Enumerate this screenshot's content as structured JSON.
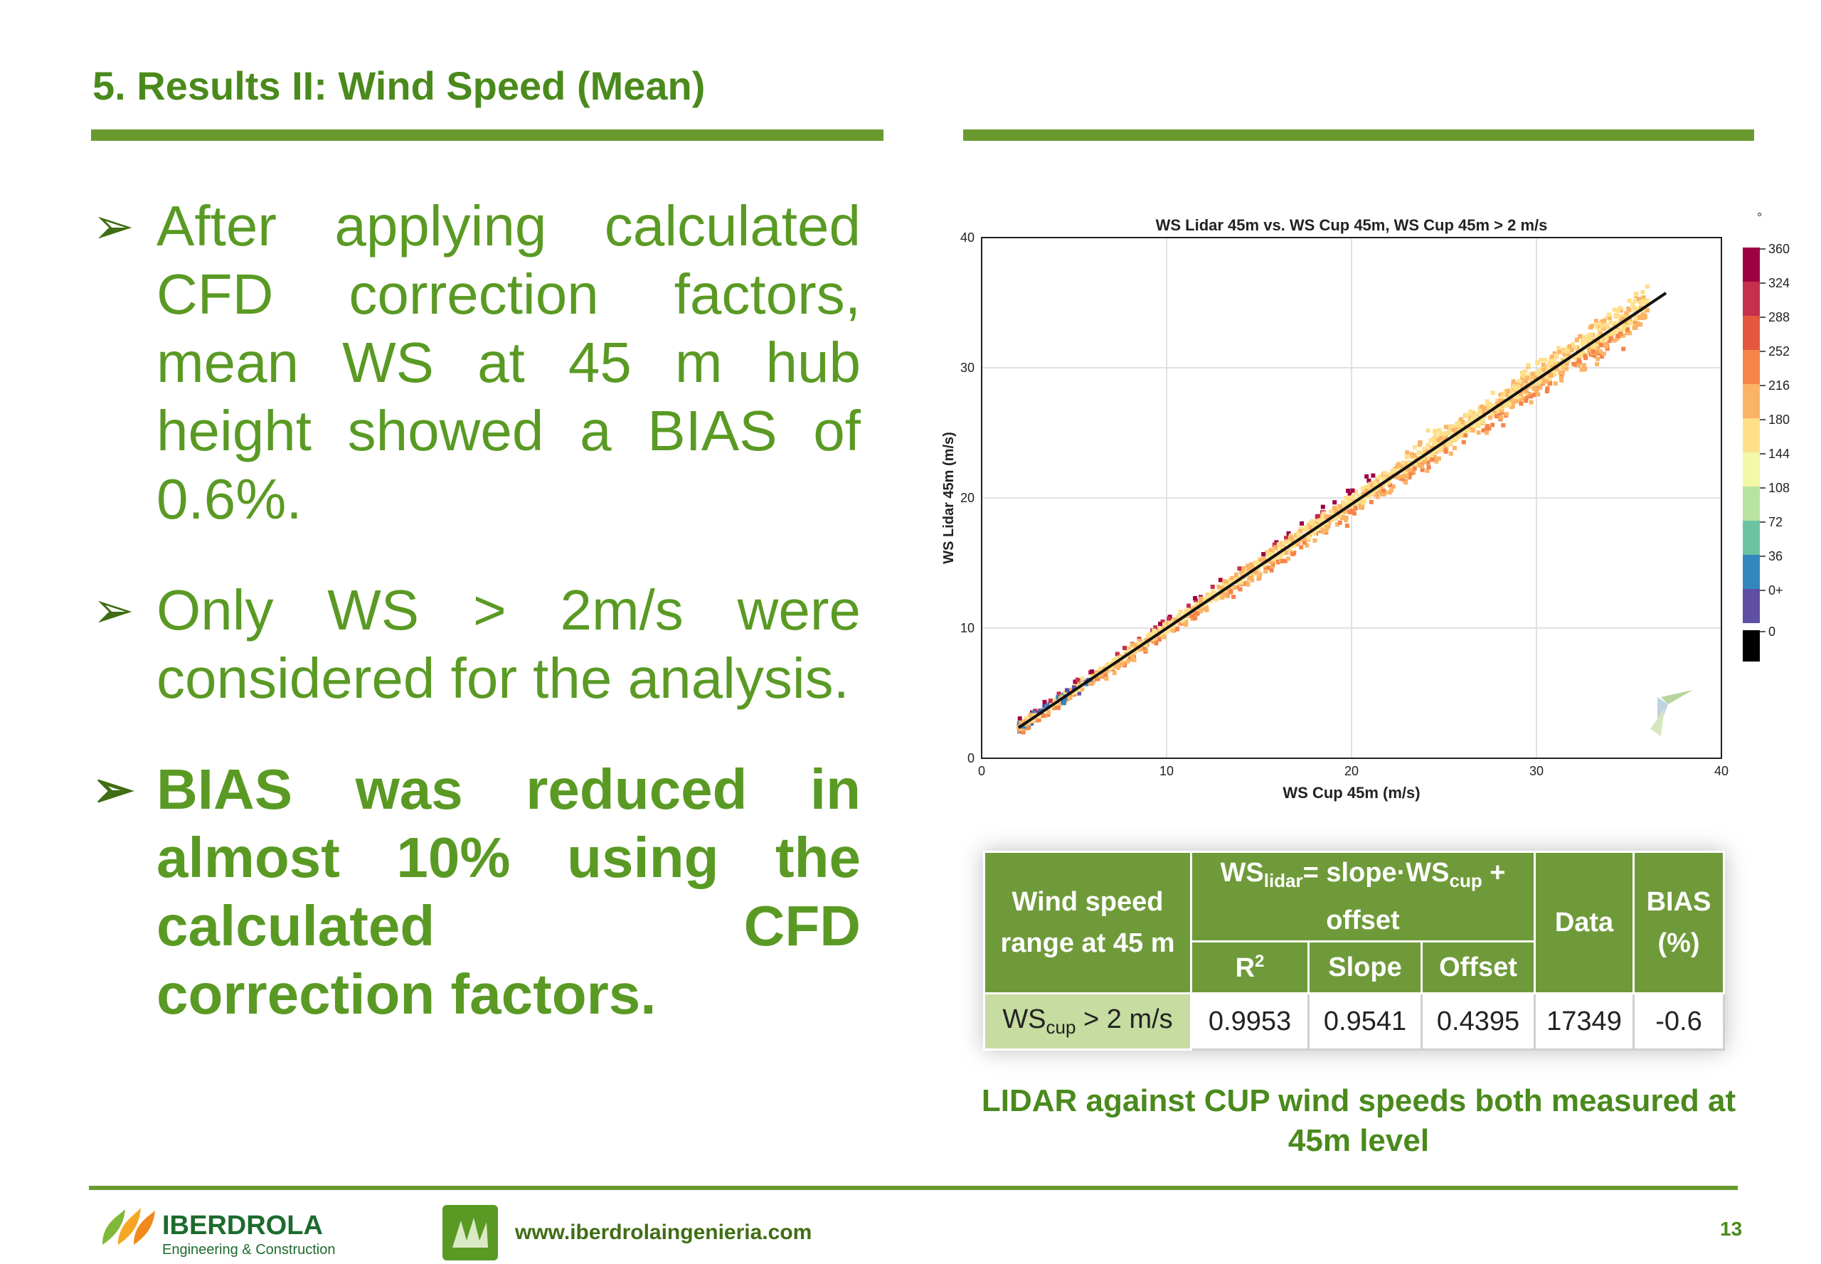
{
  "slide": {
    "title": "5. Results II: Wind Speed (Mean)",
    "page_number": "13",
    "website": "www.iberdrolaingenieria.com",
    "logo": {
      "name": "IBERDROLA",
      "tagline": "Engineering & Construction"
    }
  },
  "bullets": [
    "After applying calculated CFD correction factors, mean WS at 45 m hub height showed a BIAS of 0.6%.",
    "Only WS > 2m/s were considered for the analysis.",
    "BIAS was reduced in almost 10% using the calculated CFD correction factors."
  ],
  "bullet_last_char": ".",
  "caption": "LIDAR against CUP wind speeds both measured at 45m level",
  "table": {
    "header_range": "Wind speed range at 45 m",
    "header_formula": {
      "ws": "WS",
      "lidar": "lidar",
      "mid": "= slope·WS",
      "cup": "cup",
      "end": " + offset"
    },
    "header_data": "Data",
    "header_bias": "BIAS (%)",
    "sub_r2": "R",
    "sub_r2_sup": "2",
    "sub_slope": "Slope",
    "sub_offset": "Offset",
    "row_label": {
      "ws": "WS",
      "sub": "cup",
      "rest": " > 2 m/s"
    },
    "row_values": {
      "r2": "0.9953",
      "slope": "0.9541",
      "offset": "0.4395",
      "data": "17349",
      "bias": "-0.6"
    }
  },
  "chart_data": {
    "type": "scatter",
    "title": "WS Lidar 45m vs. WS Cup 45m, WS Cup 45m > 2 m/s",
    "xlabel": "WS Cup 45m (m/s)",
    "ylabel": "WS Lidar 45m (m/s)",
    "xlim": [
      0,
      40
    ],
    "ylim": [
      0,
      40
    ],
    "xticks": [
      "0",
      "10",
      "20",
      "30",
      "40"
    ],
    "yticks": [
      "0",
      "10",
      "20",
      "30",
      "40"
    ],
    "grid": true,
    "regression": {
      "slope": 0.9541,
      "offset": 0.4395,
      "x_range": [
        2,
        37
      ]
    },
    "point_cloud": {
      "x_range": [
        2,
        36
      ],
      "approx_spread": 1.2
    },
    "colorbar": {
      "unit": "°",
      "labels": [
        "360",
        "324",
        "288",
        "252",
        "216",
        "180",
        "144",
        "108",
        "72",
        "36",
        "0+",
        "0"
      ],
      "colors": [
        "#9e0142",
        "#c5314c",
        "#e45840",
        "#f5844b",
        "#fbb466",
        "#fee08b",
        "#f3f8a9",
        "#b9e3a0",
        "#6cc3a4",
        "#3288bd",
        "#5e4fa2",
        "#000000"
      ]
    },
    "series": [
      {
        "x": [
          2.5,
          4,
          6,
          8,
          10,
          12,
          14,
          16,
          18,
          20,
          21,
          22,
          24,
          26,
          28,
          30,
          32,
          34
        ],
        "y": [
          2.8,
          4.2,
          6.2,
          8.1,
          10.0,
          11.8,
          13.8,
          15.6,
          17.6,
          19.5,
          20.3,
          21.2,
          23.3,
          25.1,
          27.0,
          28.8,
          30.8,
          32.6
        ]
      }
    ]
  }
}
